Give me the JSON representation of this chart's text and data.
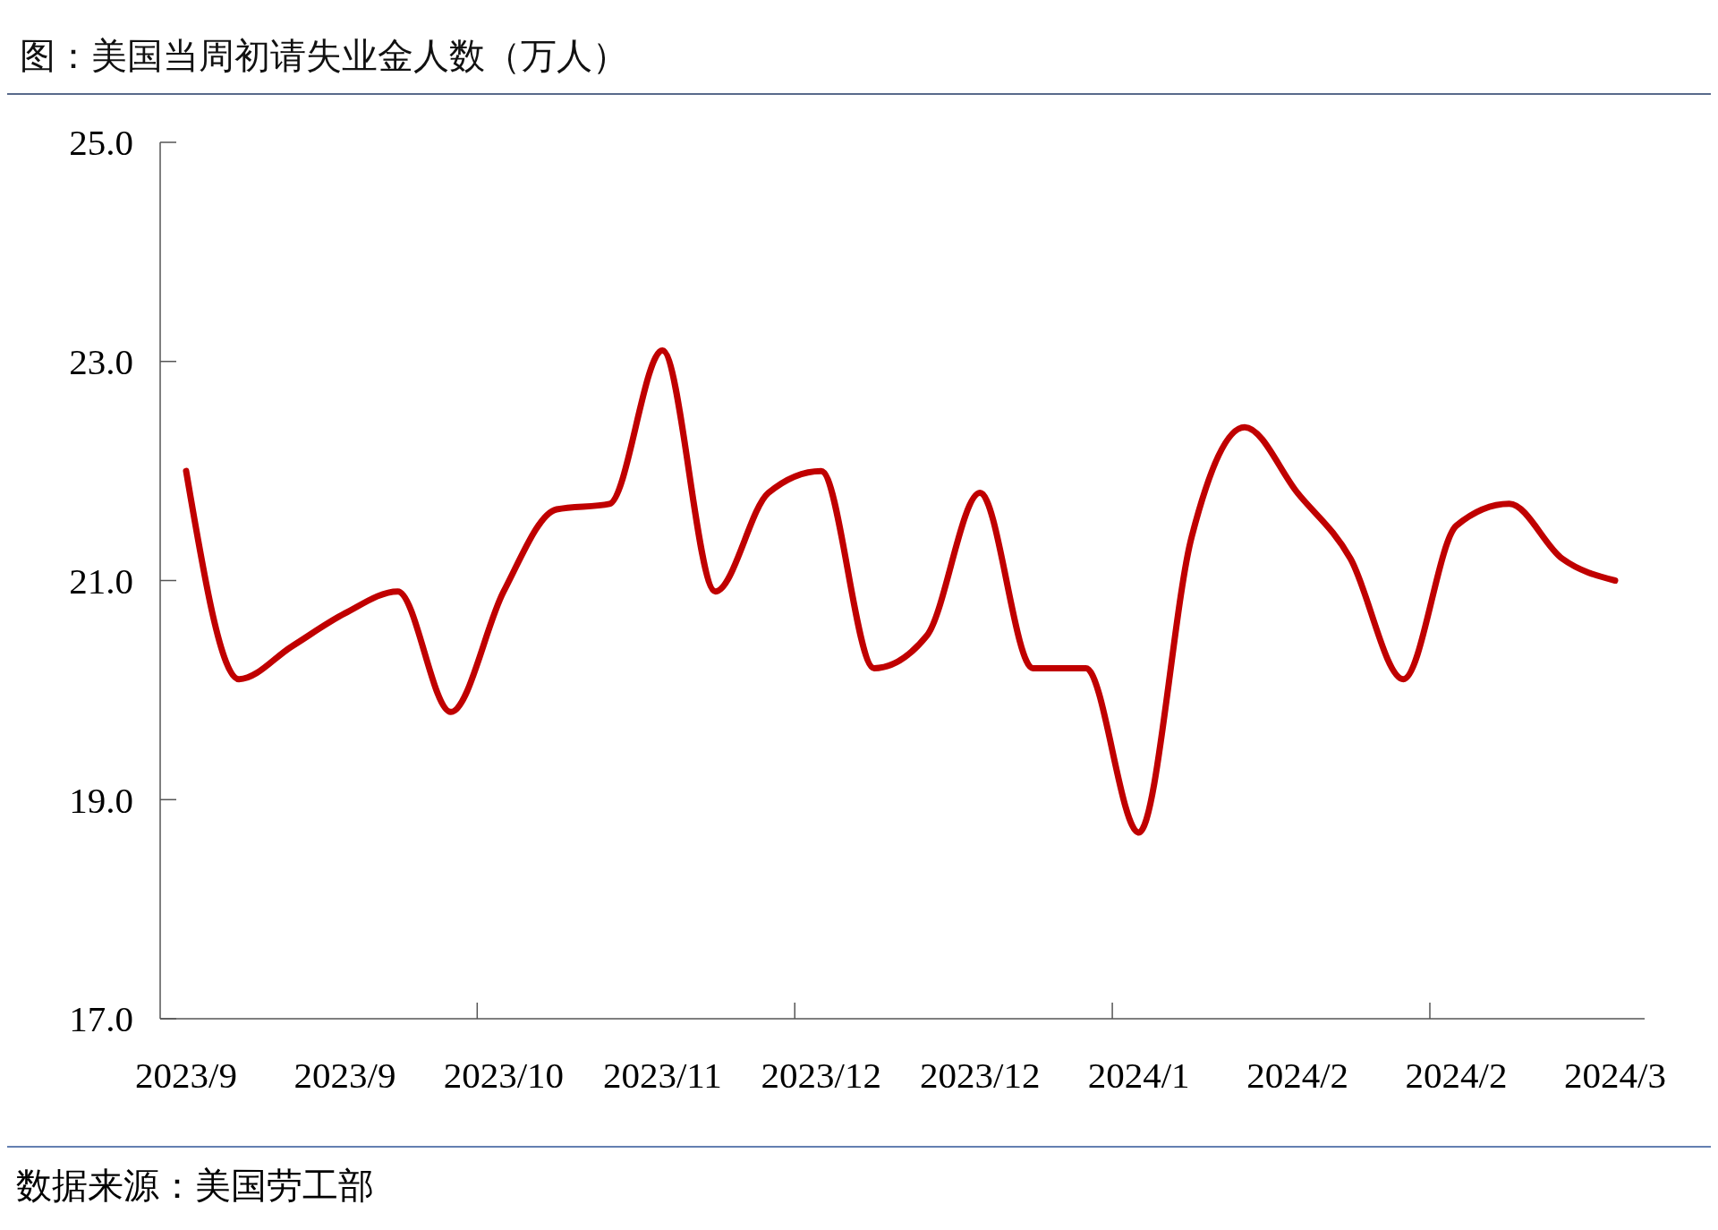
{
  "chart_data": {
    "type": "line",
    "title": "图：美国当周初请失业金人数（万人）",
    "categories": [
      "2023/9",
      null,
      null,
      "2023/9",
      null,
      null,
      "2023/10",
      null,
      null,
      "2023/11",
      null,
      null,
      "2023/12",
      null,
      null,
      "2023/12",
      null,
      null,
      "2024/1",
      null,
      null,
      "2024/2",
      null,
      null,
      "2024/2",
      null,
      null,
      "2024/3"
    ],
    "series": [
      {
        "color": "#c00000",
        "values": [
          22.0,
          20.1,
          20.4,
          20.7,
          20.9,
          19.8,
          20.9,
          21.65,
          21.7,
          23.1,
          20.9,
          21.8,
          22.0,
          20.2,
          20.5,
          21.8,
          20.2,
          20.2,
          18.7,
          21.4,
          22.4,
          21.8,
          21.2,
          20.1,
          21.5,
          21.7,
          21.2,
          21.0
        ]
      }
    ],
    "ylim": [
      17,
      25
    ],
    "yticks": [
      {
        "value": 17,
        "label": "17.0"
      },
      {
        "value": 19,
        "label": "19.0"
      },
      {
        "value": 21,
        "label": "21.0"
      },
      {
        "value": 23,
        "label": "23.0"
      },
      {
        "value": 25,
        "label": "25.0"
      }
    ],
    "grid": false,
    "marker": "none",
    "line_style": "solid",
    "annotations": [
      "数据来源：美国劳工部"
    ]
  }
}
